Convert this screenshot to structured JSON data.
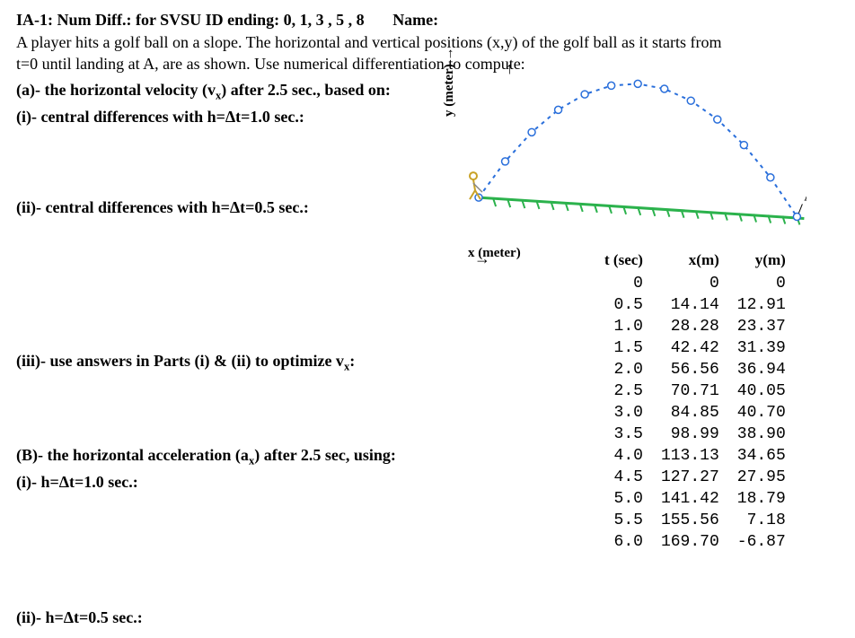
{
  "header": {
    "title_prefix": "IA-1: Num Diff.: for SVSU ID ending: 0, 1, 3 , 5 , 8",
    "name_label": "Name:"
  },
  "intro": {
    "line1": "A player hits a golf ball on a slope. The horizontal and vertical positions (x,y) of the golf ball as it starts from",
    "line2": "t=0 until landing at A, are as shown.  Use numerical differentiation to compute:"
  },
  "parts": {
    "a_label": "(a)- the horizontal velocity (v",
    "a_sub": "x",
    "a_rest": ") after 2.5 sec., based on:",
    "ai": "(i)- central differences with h=Δt=1.0 sec.:",
    "aii": "(ii)- central differences with h=Δt=0.5 sec.:",
    "aiii_pre": "(iii)- use answers in Parts (i) & (ii) to optimize v",
    "aiii_sub": "x",
    "aiii_post": ":",
    "b_label_pre": "(B)- the horizontal acceleration (a",
    "b_sub": "x",
    "b_label_post": ") after 2.5 sec, using:",
    "bi": "(i)- h=Δt=1.0 sec.:",
    "bii": "(ii)- h=Δt=0.5 sec.:"
  },
  "axes": {
    "y_label": "y (meter)  →",
    "x_label": "x (meter)",
    "x_arrow": "→",
    "y_arrow": "↑",
    "point_A": "A"
  },
  "plot": {
    "trajectory_color": "#2a6fdb",
    "slope_color": "#2bb24c",
    "ball_color": "#ffffff",
    "ball_stroke": "#2a6fdb",
    "golfer_color": "#c9a227",
    "trajectory_points": [
      {
        "x": 0,
        "y": 0
      },
      {
        "x": 14.14,
        "y": 12.91
      },
      {
        "x": 28.28,
        "y": 23.37
      },
      {
        "x": 42.42,
        "y": 31.39
      },
      {
        "x": 56.56,
        "y": 36.94
      },
      {
        "x": 70.71,
        "y": 40.05
      },
      {
        "x": 84.85,
        "y": 40.7
      },
      {
        "x": 98.99,
        "y": 38.9
      },
      {
        "x": 113.13,
        "y": 34.65
      },
      {
        "x": 127.27,
        "y": 27.95
      },
      {
        "x": 141.42,
        "y": 18.79
      },
      {
        "x": 155.56,
        "y": 7.18
      },
      {
        "x": 169.7,
        "y": -6.87
      }
    ],
    "x_domain": [
      0,
      170
    ],
    "y_domain": [
      -8,
      45
    ]
  },
  "table": {
    "headers": {
      "t": "t (sec)",
      "x": "x(m)",
      "y": "y(m)"
    },
    "rows": [
      {
        "t": "0",
        "x": "0",
        "y": "0"
      },
      {
        "t": "0.5",
        "x": "14.14",
        "y": "12.91"
      },
      {
        "t": "1.0",
        "x": "28.28",
        "y": "23.37"
      },
      {
        "t": "1.5",
        "x": "42.42",
        "y": "31.39"
      },
      {
        "t": "2.0",
        "x": "56.56",
        "y": "36.94"
      },
      {
        "t": "2.5",
        "x": "70.71",
        "y": "40.05"
      },
      {
        "t": "3.0",
        "x": "84.85",
        "y": "40.70"
      },
      {
        "t": "3.5",
        "x": "98.99",
        "y": "38.90"
      },
      {
        "t": "4.0",
        "x": "113.13",
        "y": "34.65"
      },
      {
        "t": "4.5",
        "x": "127.27",
        "y": "27.95"
      },
      {
        "t": "5.0",
        "x": "141.42",
        "y": "18.79"
      },
      {
        "t": "5.5",
        "x": "155.56",
        "y": "7.18"
      },
      {
        "t": "6.0",
        "x": "169.70",
        "y": "-6.87"
      }
    ]
  }
}
